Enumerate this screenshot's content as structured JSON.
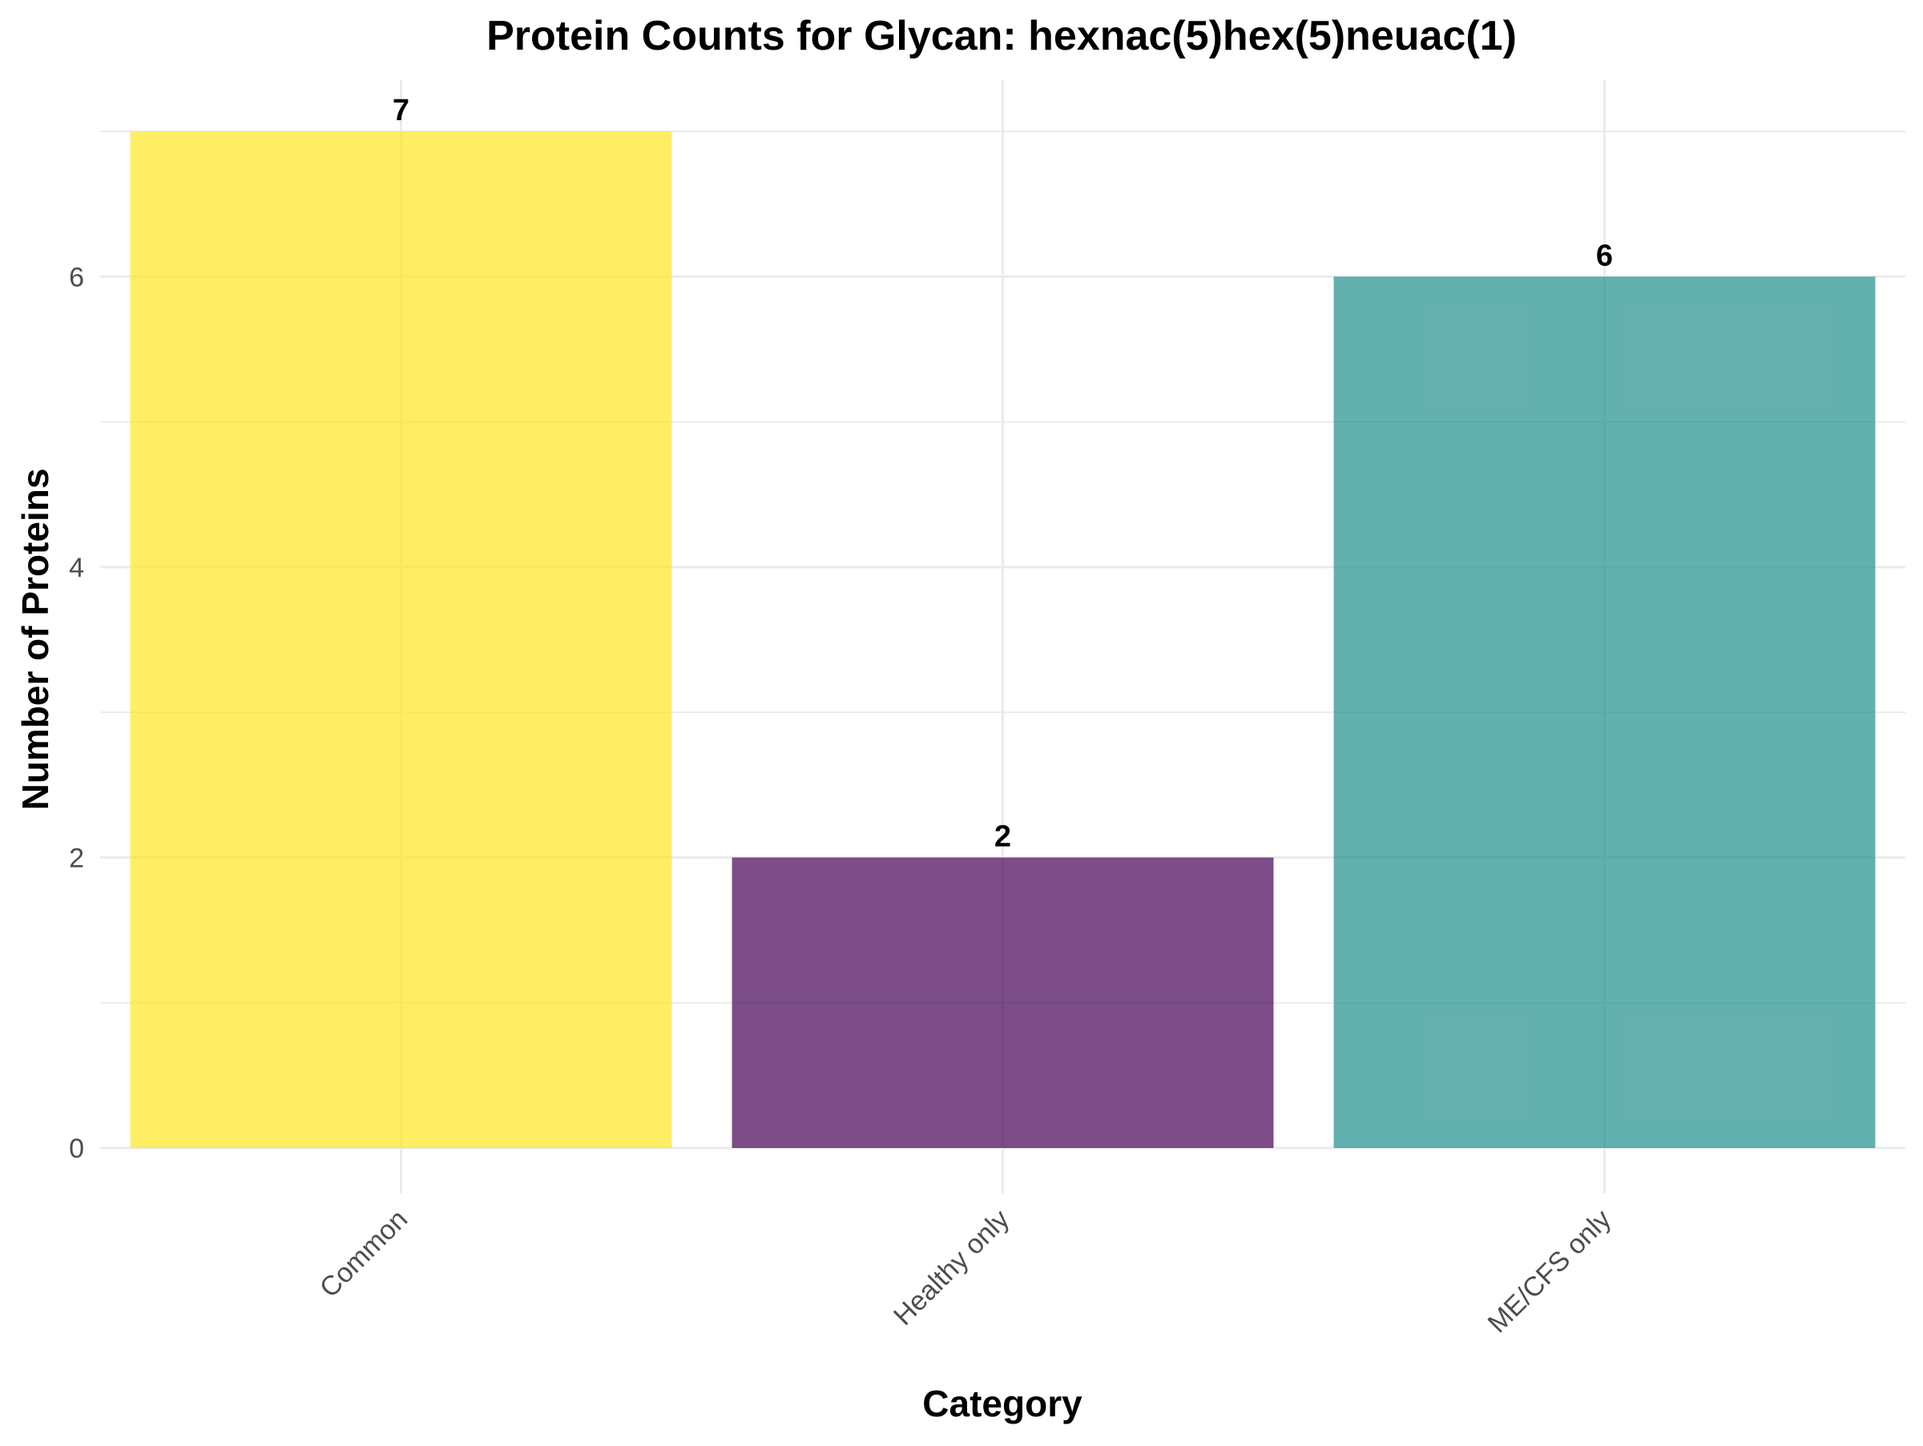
{
  "chart_data": {
    "type": "bar",
    "title": "Protein Counts for Glycan: hexnac(5)hex(5)neuac(1)",
    "xlabel": "Category",
    "ylabel": "Number of Proteins",
    "categories": [
      "Common",
      "Healthy only",
      "ME/CFS only"
    ],
    "values": [
      7,
      2,
      6
    ],
    "data_labels": [
      "7",
      "2",
      "6"
    ],
    "colors": [
      "#FDE725",
      "#440154",
      "#21908C"
    ],
    "bar_opacity": 0.7,
    "ylim": [
      0,
      7.35
    ],
    "yticks": [
      0,
      2,
      4,
      6
    ],
    "ytick_labels": [
      "0",
      "2",
      "4",
      "6"
    ],
    "y_minor_ticks": [
      1,
      3,
      5,
      7
    ],
    "grid": true,
    "legend": false,
    "x_tick_rotation_deg": 45
  }
}
